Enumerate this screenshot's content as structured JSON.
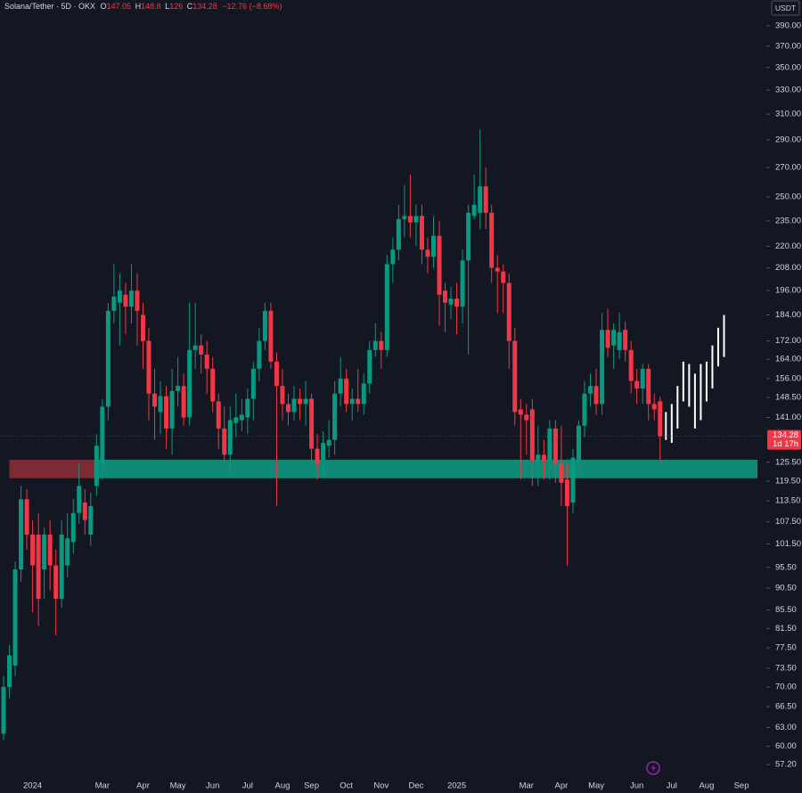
{
  "chart_data": {
    "type": "candlestick",
    "header": {
      "symbol": "Solana/Tether · 5D · OKX",
      "ohlc_labels": [
        "O",
        "H",
        "L",
        "C"
      ],
      "change": "−12.76 (−8.68%)"
    },
    "currency": "USDT",
    "countdown": "1d 17h",
    "log_scale": true,
    "colors": {
      "up": "#089981",
      "down": "#f23645",
      "projection": "#ffffff",
      "background": "#131722"
    },
    "categories": [
      null,
      null,
      null,
      null,
      null,
      "2024",
      null,
      null,
      null,
      null,
      null,
      null,
      null,
      null,
      null,
      null,
      null,
      "Mar",
      null,
      null,
      null,
      null,
      null,
      null,
      "Apr",
      null,
      null,
      null,
      null,
      null,
      "May",
      null,
      null,
      null,
      null,
      null,
      "Jun",
      null,
      null,
      null,
      null,
      null,
      "Jul",
      null,
      null,
      null,
      null,
      null,
      "Aug",
      null,
      null,
      null,
      null,
      "Sep",
      null,
      null,
      null,
      null,
      null,
      "Oct",
      null,
      null,
      null,
      null,
      null,
      "Nov",
      null,
      null,
      null,
      null,
      null,
      "Dec",
      null,
      null,
      null,
      null,
      null,
      null,
      "2025",
      null,
      null,
      null,
      null,
      null,
      null,
      null,
      null,
      null,
      null,
      null,
      "Mar",
      null,
      null,
      null,
      null,
      null,
      "Apr",
      null,
      null,
      null,
      null,
      null,
      "May",
      null,
      null,
      null,
      null,
      null,
      null,
      "Jun",
      null,
      null,
      null,
      null,
      null,
      "Jul",
      null,
      null,
      null,
      null,
      null,
      "Aug",
      null,
      null,
      null,
      null,
      null,
      "Sep"
    ],
    "open": [
      62,
      70,
      74,
      95,
      114,
      104,
      104,
      95,
      104,
      96,
      88,
      96,
      102,
      110,
      113,
      104,
      118,
      125,
      145,
      186,
      190,
      194,
      188,
      196,
      184,
      172,
      150,
      143,
      149,
      137,
      151,
      153,
      141,
      168,
      170,
      166,
      160,
      147,
      137,
      128,
      139,
      140,
      141,
      148,
      160,
      172,
      186,
      163,
      153,
      146,
      143,
      148,
      146,
      148,
      130,
      126,
      131,
      133,
      150,
      156,
      146,
      148,
      146,
      154,
      168,
      172,
      168,
      210,
      218,
      236,
      238,
      234,
      238,
      218,
      214,
      226,
      196,
      189,
      192,
      188,
      212,
      238,
      240,
      257,
      240,
      208,
      206,
      200,
      172,
      144,
      142,
      144,
      126,
      128,
      126,
      137,
      125,
      120,
      113,
      126,
      138,
      150,
      153,
      146,
      177,
      170,
      168,
      177,
      168,
      155,
      152,
      160,
      146,
      147.05,
      null,
      null,
      null,
      null,
      null,
      null,
      null,
      null,
      null,
      null,
      null,
      null,
      null,
      null
    ],
    "high": [
      72,
      78,
      97,
      118,
      117,
      108,
      110,
      106,
      108,
      100,
      108,
      110,
      114,
      125,
      117,
      116,
      135,
      148,
      190,
      210,
      205,
      200,
      210,
      205,
      190,
      178,
      160,
      155,
      153,
      160,
      165,
      158,
      190,
      190,
      175,
      172,
      165,
      150,
      145,
      145,
      150,
      148,
      152,
      163,
      178,
      190,
      190,
      167,
      160,
      150,
      153,
      152,
      155,
      150,
      135,
      136,
      140,
      155,
      165,
      160,
      152,
      160,
      158,
      172,
      180,
      176,
      215,
      225,
      245,
      258,
      265,
      245,
      245,
      225,
      238,
      235,
      200,
      198,
      200,
      218,
      245,
      265,
      298,
      270,
      245,
      215,
      210,
      205,
      178,
      148,
      146,
      148,
      138,
      133,
      140,
      140,
      138,
      125,
      130,
      140,
      155,
      158,
      160,
      185,
      187,
      180,
      185,
      181,
      172,
      160,
      162,
      162,
      150,
      148.8,
      null,
      null,
      null,
      null,
      null,
      null,
      null,
      null,
      null,
      null,
      null,
      null,
      null,
      null
    ],
    "low": [
      61,
      68,
      72,
      92,
      100,
      85,
      82,
      88,
      90,
      80,
      86,
      93,
      99,
      107,
      104,
      101,
      115,
      120,
      140,
      180,
      170,
      175,
      180,
      170,
      160,
      140,
      133,
      135,
      130,
      128,
      145,
      138,
      138,
      160,
      158,
      150,
      143,
      130,
      125,
      122,
      134,
      136,
      135,
      140,
      155,
      168,
      160,
      112,
      140,
      138,
      140,
      140,
      138,
      125,
      120,
      122,
      127,
      128,
      145,
      143,
      140,
      143,
      142,
      150,
      165,
      160,
      165,
      200,
      212,
      225,
      225,
      220,
      210,
      205,
      208,
      179,
      176,
      182,
      175,
      180,
      166,
      236,
      230,
      230,
      200,
      185,
      185,
      160,
      138,
      120,
      128,
      118,
      118,
      120,
      120,
      119,
      112,
      96,
      110,
      122,
      134,
      145,
      142,
      142,
      165,
      160,
      164,
      163,
      150,
      146,
      146,
      140,
      140,
      126,
      null,
      null,
      null,
      null,
      null,
      null,
      null,
      null,
      null,
      null,
      null,
      null,
      null,
      null
    ],
    "close": [
      70,
      76,
      95,
      114,
      104,
      96,
      88,
      104,
      96,
      88,
      104,
      103,
      110,
      118,
      108,
      112,
      131,
      145,
      186,
      193,
      196,
      188,
      196,
      186,
      172,
      150,
      145,
      149,
      137,
      151,
      153,
      141,
      168,
      170,
      166,
      160,
      147,
      137,
      128,
      140,
      141,
      142,
      148,
      160,
      172,
      186,
      163,
      153,
      146,
      143,
      148,
      146,
      148,
      130,
      125,
      132,
      133,
      150,
      156,
      146,
      148,
      146,
      154,
      168,
      172,
      168,
      210,
      218,
      236,
      238,
      234,
      238,
      218,
      214,
      226,
      194,
      190,
      192,
      188,
      212,
      240,
      245,
      257,
      240,
      208,
      206,
      200,
      172,
      143,
      142,
      140,
      126,
      128,
      126,
      137,
      125,
      119,
      112,
      127,
      138,
      150,
      153,
      146,
      177,
      169,
      177,
      176,
      168,
      155,
      152,
      160,
      146,
      144,
      134.28,
      null,
      null,
      null,
      null,
      null,
      null,
      null,
      null,
      null,
      null,
      null,
      null,
      null,
      null
    ],
    "projection": {
      "high": [
        null,
        null,
        null,
        null,
        null,
        null,
        null,
        null,
        null,
        null,
        null,
        null,
        null,
        null,
        null,
        null,
        null,
        null,
        null,
        null,
        null,
        null,
        null,
        null,
        null,
        null,
        null,
        null,
        null,
        null,
        null,
        null,
        null,
        null,
        null,
        null,
        null,
        null,
        null,
        null,
        null,
        null,
        null,
        null,
        null,
        null,
        null,
        null,
        null,
        null,
        null,
        null,
        null,
        null,
        null,
        null,
        null,
        null,
        null,
        null,
        null,
        null,
        null,
        null,
        null,
        null,
        null,
        null,
        null,
        null,
        null,
        null,
        null,
        null,
        null,
        null,
        null,
        null,
        null,
        null,
        null,
        null,
        null,
        null,
        null,
        null,
        null,
        null,
        null,
        null,
        null,
        null,
        null,
        null,
        null,
        null,
        null,
        null,
        null,
        null,
        null,
        null,
        null,
        null,
        null,
        null,
        null,
        null,
        null,
        null,
        null,
        null,
        null,
        null,
        143,
        146,
        153,
        163,
        162,
        158,
        162,
        163,
        170,
        178,
        184,
        null,
        null,
        null
      ],
      "low": [
        null,
        null,
        null,
        null,
        null,
        null,
        null,
        null,
        null,
        null,
        null,
        null,
        null,
        null,
        null,
        null,
        null,
        null,
        null,
        null,
        null,
        null,
        null,
        null,
        null,
        null,
        null,
        null,
        null,
        null,
        null,
        null,
        null,
        null,
        null,
        null,
        null,
        null,
        null,
        null,
        null,
        null,
        null,
        null,
        null,
        null,
        null,
        null,
        null,
        null,
        null,
        null,
        null,
        null,
        null,
        null,
        null,
        null,
        null,
        null,
        null,
        null,
        null,
        null,
        null,
        null,
        null,
        null,
        null,
        null,
        null,
        null,
        null,
        null,
        null,
        null,
        null,
        null,
        null,
        null,
        null,
        null,
        null,
        null,
        null,
        null,
        null,
        null,
        null,
        null,
        null,
        null,
        null,
        null,
        null,
        null,
        null,
        null,
        null,
        null,
        null,
        null,
        null,
        null,
        null,
        null,
        null,
        null,
        null,
        null,
        null,
        null,
        null,
        null,
        133,
        132,
        137,
        147,
        145,
        137,
        140,
        147,
        152,
        161,
        165,
        null,
        null,
        null
      ]
    },
    "zones": [
      {
        "low": 120.4,
        "high": 126.3,
        "start": 1,
        "end": 15.6,
        "color": "#7d2a34"
      },
      {
        "low": 120.4,
        "high": 126.3,
        "start": 15.6,
        "end": 130,
        "color": "#0f8a76"
      }
    ],
    "ylim": [
      55.66,
      417.1
    ],
    "yticks": [
      {
        "value": 390,
        "label": "390.00"
      },
      {
        "value": 370,
        "label": "370.00"
      },
      {
        "value": 350,
        "label": "350.00"
      },
      {
        "value": 330,
        "label": "330.00"
      },
      {
        "value": 310,
        "label": "310.00"
      },
      {
        "value": 290,
        "label": "290.00"
      },
      {
        "value": 270,
        "label": "270.00"
      },
      {
        "value": 250,
        "label": "250.00"
      },
      {
        "value": 235,
        "label": "235.00"
      },
      {
        "value": 220,
        "label": "220.00"
      },
      {
        "value": 208,
        "label": "208.00"
      },
      {
        "value": 196,
        "label": "196.00"
      },
      {
        "value": 184,
        "label": "184.00"
      },
      {
        "value": 172,
        "label": "172.00"
      },
      {
        "value": 164,
        "label": "164.00"
      },
      {
        "value": 156,
        "label": "156.00"
      },
      {
        "value": 148.5,
        "label": "148.50"
      },
      {
        "value": 141,
        "label": "141.00"
      },
      {
        "value": 125.5,
        "label": "125.50"
      },
      {
        "value": 119.5,
        "label": "119.50"
      },
      {
        "value": 113.5,
        "label": "113.50"
      },
      {
        "value": 107.5,
        "label": "107.50"
      },
      {
        "value": 101.5,
        "label": "101.50"
      },
      {
        "value": 95.5,
        "label": "95.50"
      },
      {
        "value": 90.5,
        "label": "90.50"
      },
      {
        "value": 85.5,
        "label": "85.50"
      },
      {
        "value": 81.5,
        "label": "81.50"
      },
      {
        "value": 77.5,
        "label": "77.50"
      },
      {
        "value": 73.5,
        "label": "73.50"
      },
      {
        "value": 70,
        "label": "70.00"
      },
      {
        "value": 66.5,
        "label": "66.50"
      },
      {
        "value": 63,
        "label": "63.00"
      },
      {
        "value": 60,
        "label": "60.00"
      },
      {
        "value": 57.2,
        "label": "57.20"
      }
    ]
  }
}
